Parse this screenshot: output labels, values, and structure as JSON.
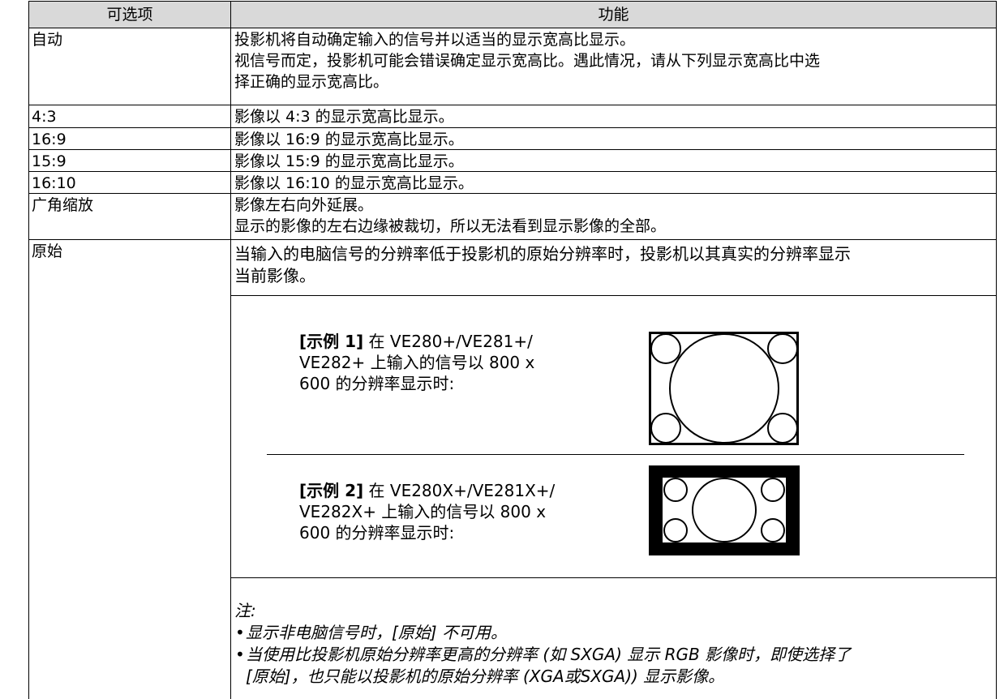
{
  "table": {
    "header": [
      "可选项",
      "功能"
    ],
    "rows": [
      {
        "option": "自动",
        "lines": [
          "投影机将自动确定输入的信号并以适当的显示宽高比显示。",
          "视信号而定，投影机可能会错误确定显示宽高比。遇此情况，请从下列显示宽高比中选",
          "择正确的显示宽高比。"
        ]
      },
      {
        "option": "4:3",
        "lines": [
          "影像以 4:3 的显示宽高比显示。"
        ]
      },
      {
        "option": "16:9",
        "lines": [
          "影像以 16:9 的显示宽高比显示。"
        ]
      },
      {
        "option": "15:9",
        "lines": [
          "影像以 15:9 的显示宽高比显示。"
        ]
      },
      {
        "option": "16:10",
        "lines": [
          "影像以 16:10 的显示宽高比显示。"
        ]
      },
      {
        "option": "广角缩放",
        "lines": [
          "影像左右向外延展。",
          "显示的影像的左右边缘被裁切，所以无法看到显示影像的全部。"
        ]
      },
      {
        "option": "原始",
        "lines": [
          "当输入的电脑信号的分辨率低于投影机的原始分辨率时，投影机以其真实的分辨率显示",
          "当前影像。"
        ],
        "examples": [
          {
            "label": "[示例 1]",
            "lines": [
              "在 VE280+/VE281+/",
              "VE282+ 上输入的信号以 800 x",
              "600 的分辨率显示时:"
            ]
          },
          {
            "label": "[示例 2]",
            "lines": [
              "在 VE280X+/VE281X+/",
              "VE282X+ 上输入的信号以 800 x",
              "600 的分辨率显示时:"
            ]
          }
        ],
        "note": {
          "title": "注:",
          "items": [
            [
              "显示非电脑信号时，[原始] 不可用。"
            ],
            [
              "当使用比投影机原始分辨率更高的分辨率 (如 SXGA) 显示 RGB 影像时，即使选择了",
              "[原始]，也只能以投影机的原始分辨率 (XGA或SXGA)) 显示影像。"
            ]
          ]
        }
      }
    ]
  }
}
